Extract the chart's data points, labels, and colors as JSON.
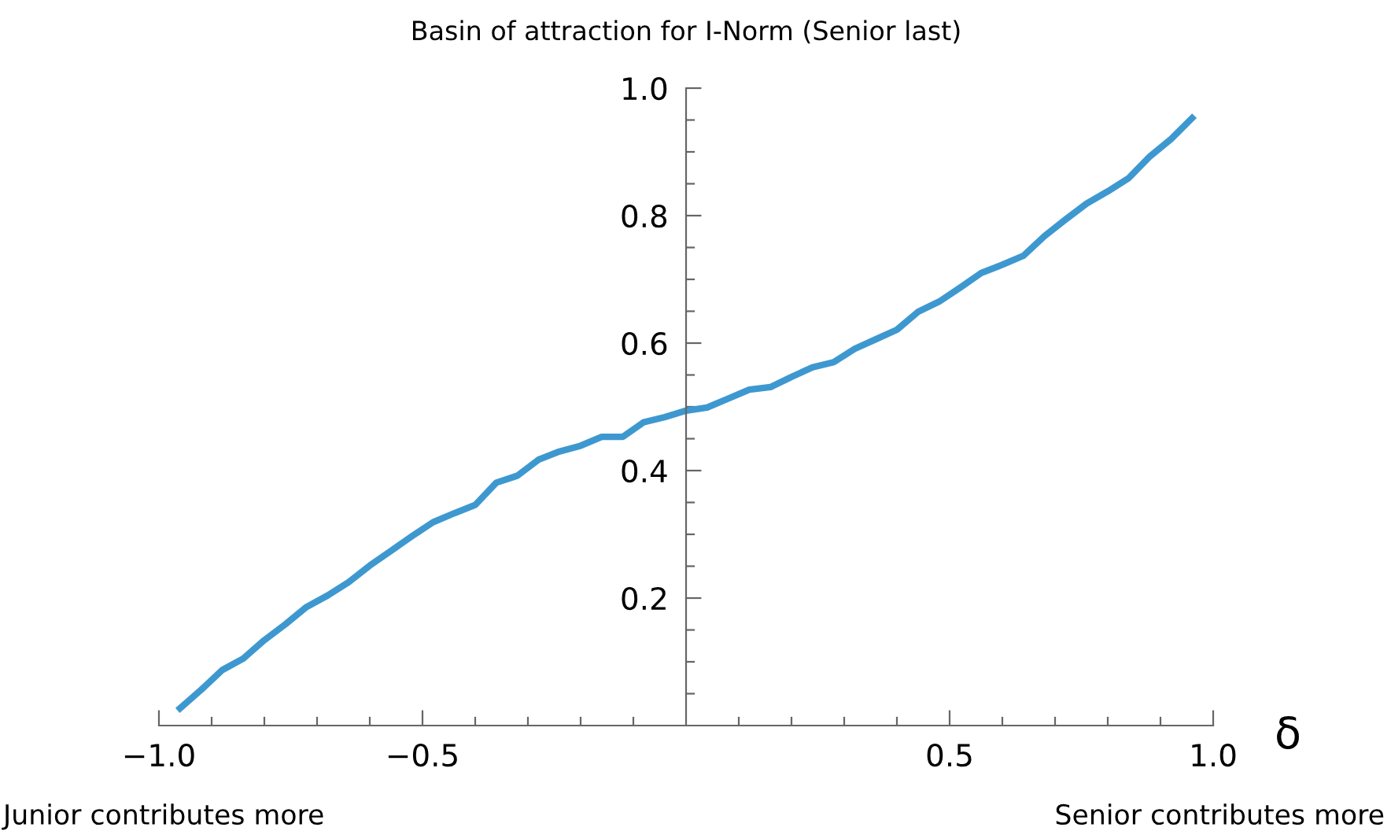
{
  "chart_data": {
    "type": "line",
    "title": "Basin of attraction for I-Norm (Senior last)",
    "xlabel": "δ",
    "annotations": [
      "Junior contributes more",
      "Senior contributes more"
    ],
    "x": [
      -0.96,
      -0.92,
      -0.88,
      -0.84,
      -0.8,
      -0.76,
      -0.72,
      -0.68,
      -0.64,
      -0.6,
      -0.56,
      -0.52,
      -0.48,
      -0.44,
      -0.4,
      -0.36,
      -0.32,
      -0.28,
      -0.24,
      -0.2,
      -0.16,
      -0.12,
      -0.08,
      -0.04,
      0.0,
      0.04,
      0.08,
      0.12,
      0.16,
      0.2,
      0.24,
      0.28,
      0.32,
      0.36,
      0.4,
      0.44,
      0.48,
      0.52,
      0.56,
      0.6,
      0.64,
      0.68,
      0.72,
      0.76,
      0.8,
      0.84,
      0.88,
      0.92,
      0.96
    ],
    "series": [
      {
        "color": "#3e98d0",
        "values": [
          0.027,
          0.056,
          0.087,
          0.105,
          0.134,
          0.159,
          0.186,
          0.204,
          0.225,
          0.251,
          0.274,
          0.297,
          0.319,
          0.333,
          0.346,
          0.381,
          0.392,
          0.417,
          0.43,
          0.439,
          0.453,
          0.453,
          0.476,
          0.484,
          0.494,
          0.499,
          0.513,
          0.527,
          0.531,
          0.547,
          0.562,
          0.57,
          0.591,
          0.606,
          0.621,
          0.649,
          0.665,
          0.687,
          0.71,
          0.723,
          0.737,
          0.768,
          0.794,
          0.819,
          0.838,
          0.859,
          0.893,
          0.92,
          0.953
        ]
      }
    ],
    "xlim": [
      -1.0,
      1.0
    ],
    "ylim": [
      0,
      1.0
    ],
    "xticks": [
      {
        "value": -1.0,
        "label": "−1.0"
      },
      {
        "value": -0.9,
        "label": null
      },
      {
        "value": -0.8,
        "label": null
      },
      {
        "value": -0.7,
        "label": null
      },
      {
        "value": -0.6,
        "label": null
      },
      {
        "value": -0.5,
        "label": "−0.5"
      },
      {
        "value": -0.4,
        "label": null
      },
      {
        "value": -0.3,
        "label": null
      },
      {
        "value": -0.2,
        "label": null
      },
      {
        "value": -0.1,
        "label": null
      },
      {
        "value": 0.1,
        "label": null
      },
      {
        "value": 0.2,
        "label": null
      },
      {
        "value": 0.3,
        "label": null
      },
      {
        "value": 0.4,
        "label": null
      },
      {
        "value": 0.5,
        "label": "0.5"
      },
      {
        "value": 0.6,
        "label": null
      },
      {
        "value": 0.7,
        "label": null
      },
      {
        "value": 0.8,
        "label": null
      },
      {
        "value": 0.9,
        "label": null
      },
      {
        "value": 1.0,
        "label": "1.0"
      }
    ],
    "yticks": [
      {
        "value": 0.05,
        "label": null
      },
      {
        "value": 0.1,
        "label": null
      },
      {
        "value": 0.15,
        "label": null
      },
      {
        "value": 0.2,
        "label": "0.2"
      },
      {
        "value": 0.25,
        "label": null
      },
      {
        "value": 0.3,
        "label": null
      },
      {
        "value": 0.35,
        "label": null
      },
      {
        "value": 0.4,
        "label": "0.4"
      },
      {
        "value": 0.45,
        "label": null
      },
      {
        "value": 0.5,
        "label": null
      },
      {
        "value": 0.55,
        "label": null
      },
      {
        "value": 0.6,
        "label": "0.6"
      },
      {
        "value": 0.65,
        "label": null
      },
      {
        "value": 0.7,
        "label": null
      },
      {
        "value": 0.75,
        "label": null
      },
      {
        "value": 0.8,
        "label": "0.8"
      },
      {
        "value": 0.85,
        "label": null
      },
      {
        "value": 0.9,
        "label": null
      },
      {
        "value": 0.95,
        "label": null
      },
      {
        "value": 1.0,
        "label": "1.0"
      }
    ],
    "grid": false,
    "legend": false,
    "marker": "none",
    "line_style": "solid"
  }
}
